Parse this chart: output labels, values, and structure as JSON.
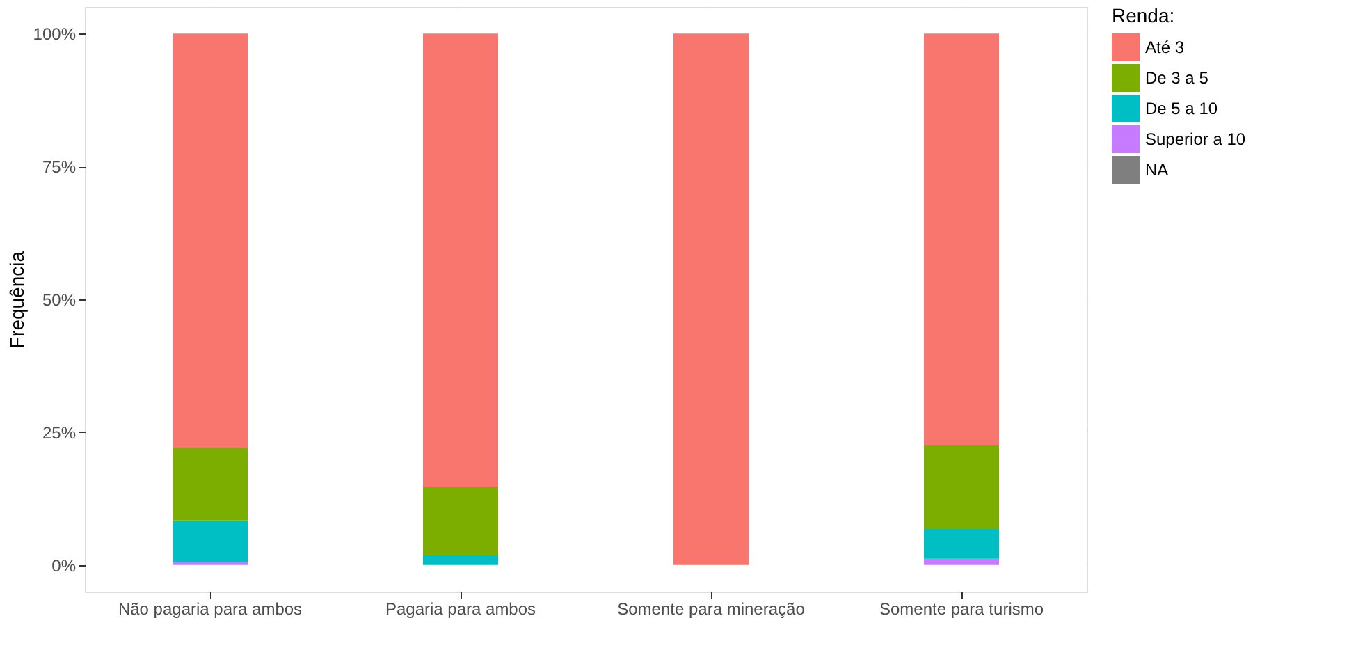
{
  "chart_data": {
    "type": "bar",
    "stacked": true,
    "ylabel": "Frequência",
    "legend_title": "Renda:",
    "legend": "right",
    "grid": true,
    "categories": [
      "Não pagaria para ambos",
      "Pagaria para ambos",
      "Somente para mineração",
      "Somente para turismo"
    ],
    "ylim": [
      -5,
      105
    ],
    "yticks": [
      {
        "value": 0,
        "label": "0%"
      },
      {
        "value": 25,
        "label": "25%"
      },
      {
        "value": 50,
        "label": "50%"
      },
      {
        "value": 75,
        "label": "75%"
      },
      {
        "value": 100,
        "label": "100%"
      }
    ],
    "series": [
      {
        "name": "NA",
        "color": "#7f7f7f",
        "values": [
          0,
          0,
          0,
          0
        ]
      },
      {
        "name": "Superior a 10",
        "color": "#c77cff",
        "values": [
          0.5,
          0,
          0,
          1.2
        ]
      },
      {
        "name": "De 5 a 10",
        "color": "#00bfc4",
        "values": [
          7.9,
          1.8,
          0,
          5.6
        ]
      },
      {
        "name": "De 3 a 5",
        "color": "#7cae00",
        "values": [
          13.6,
          12.9,
          0,
          15.8
        ]
      },
      {
        "name": "Até 3",
        "color": "#f8766d",
        "values": [
          78,
          85.3,
          100,
          77.4
        ]
      }
    ]
  }
}
